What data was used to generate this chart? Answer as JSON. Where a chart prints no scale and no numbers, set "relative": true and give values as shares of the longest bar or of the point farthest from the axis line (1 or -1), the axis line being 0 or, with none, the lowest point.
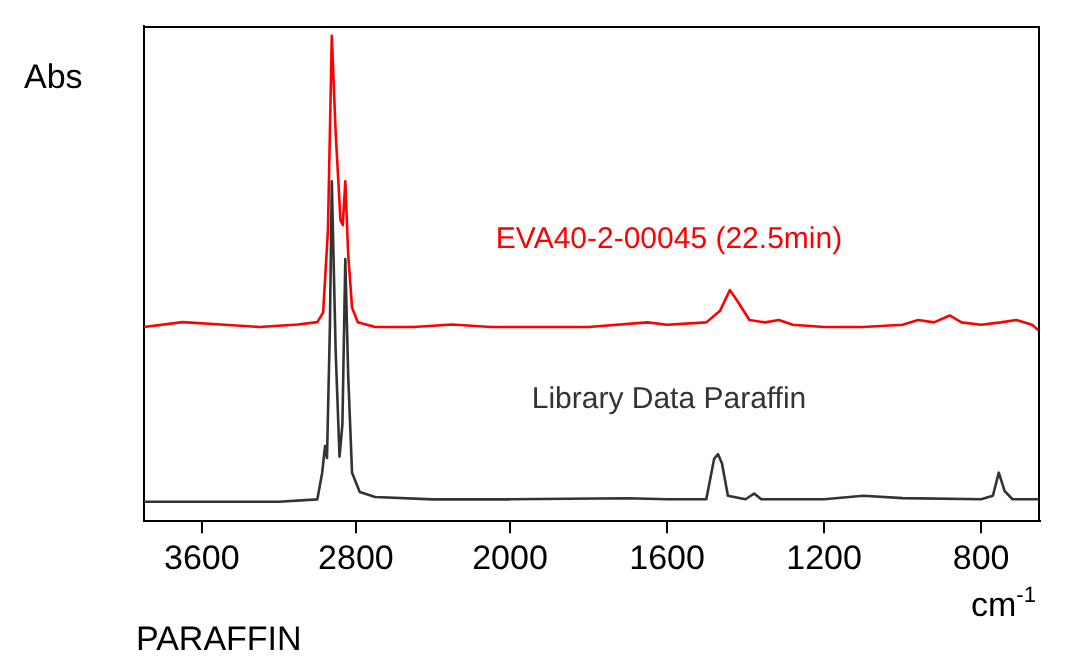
{
  "chart_data": [
    {
      "type": "line",
      "title": "PARAFFIN",
      "ylabel": "Abs",
      "relative": true,
      "xlim": [
        3900,
        2000
      ],
      "xticks": [
        3600,
        2800,
        2000
      ],
      "grid": false,
      "legend": false,
      "marker": "none",
      "line_style": "solid",
      "series": [
        {
          "color": "#ff0000",
          "x": [
            3900,
            3700,
            3500,
            3300,
            3100,
            3000,
            2970,
            2945,
            2925,
            2905,
            2880,
            2868,
            2855,
            2840,
            2820,
            2790,
            2700,
            2500,
            2300,
            2100,
            2000
          ],
          "values": [
            0.4,
            0.41,
            0.405,
            0.4,
            0.405,
            0.41,
            0.43,
            0.6,
            1.0,
            0.8,
            0.62,
            0.61,
            0.7,
            0.55,
            0.44,
            0.41,
            0.4,
            0.4,
            0.405,
            0.4,
            0.4
          ]
        },
        {
          "color": "#333333",
          "x": [
            3900,
            3500,
            3200,
            3000,
            2975,
            2960,
            2950,
            2935,
            2925,
            2905,
            2885,
            2870,
            2855,
            2840,
            2820,
            2780,
            2700,
            2400,
            2100,
            2000
          ],
          "values": [
            0.04,
            0.04,
            0.04,
            0.045,
            0.1,
            0.155,
            0.13,
            0.4,
            0.7,
            0.35,
            0.133,
            0.2,
            0.54,
            0.3,
            0.1,
            0.06,
            0.05,
            0.045,
            0.045,
            0.045
          ]
        }
      ]
    },
    {
      "type": "line",
      "xlabel": "cm$^{-1}$",
      "relative": true,
      "xlim": [
        2000,
        650
      ],
      "xticks": [
        1600,
        1200,
        800
      ],
      "grid": false,
      "legend": false,
      "marker": "none",
      "line_style": "solid",
      "series": [
        {
          "name": "EVA40-2-00045 (22.5min)",
          "color": "#ff0000",
          "x": [
            2000,
            1800,
            1650,
            1600,
            1500,
            1465,
            1440,
            1420,
            1390,
            1350,
            1315,
            1280,
            1200,
            1100,
            1000,
            960,
            920,
            880,
            850,
            800,
            750,
            710,
            670,
            650
          ],
          "values": [
            0.84,
            0.84,
            0.86,
            0.85,
            0.86,
            0.91,
            1,
            0.95,
            0.87,
            0.86,
            0.87,
            0.85,
            0.84,
            0.84,
            0.85,
            0.87,
            0.86,
            0.89,
            0.86,
            0.85,
            0.86,
            0.87,
            0.85,
            0.82
          ]
        },
        {
          "name": "Library Data Paraffin",
          "color": "#333333",
          "x": [
            2000,
            1700,
            1600,
            1500,
            1480,
            1470,
            1460,
            1445,
            1400,
            1378,
            1360,
            1200,
            1100,
            1000,
            800,
            770,
            755,
            740,
            720,
            650
          ],
          "values": [
            0.095,
            0.099,
            0.095,
            0.095,
            0.27,
            0.29,
            0.25,
            0.11,
            0.095,
            0.12,
            0.095,
            0.095,
            0.11,
            0.1,
            0.095,
            0.11,
            0.21,
            0.13,
            0.095,
            0.095
          ]
        }
      ]
    }
  ]
}
